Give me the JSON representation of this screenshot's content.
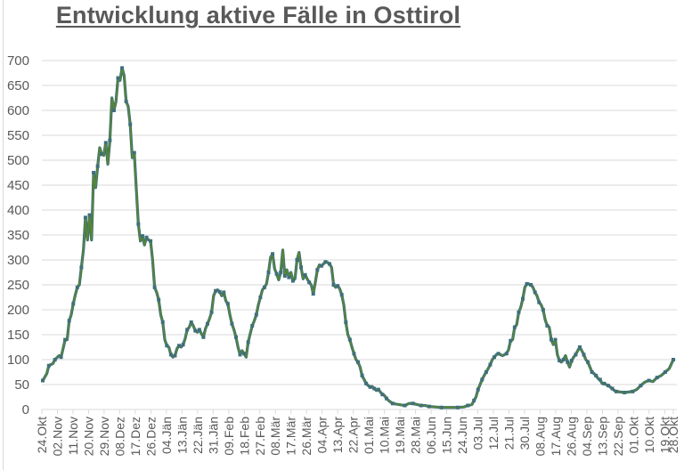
{
  "title": "Entwicklung aktive Fälle in Osttirol",
  "colors": {
    "line": "#5a8a2a",
    "marker": "#3f6f7a",
    "grid": "#d9d9d9",
    "text": "#595959"
  },
  "chart_data": {
    "type": "line",
    "title": "Entwicklung aktive Fälle in Osttirol",
    "xlabel": "",
    "ylabel": "",
    "ylim": [
      0,
      700
    ],
    "yticks": [
      0,
      50,
      100,
      150,
      200,
      250,
      300,
      350,
      400,
      450,
      500,
      550,
      600,
      650,
      700
    ],
    "grid": true,
    "legend": "none",
    "x_tick_labels": [
      "24.Okt",
      "02.Nov",
      "11.Nov",
      "20.Nov",
      "29.Nov",
      "08.Dez",
      "17.Dez",
      "26.Dez",
      "04.Jän",
      "13.Jän",
      "22.Jän",
      "31.Jän",
      "09.Feb",
      "18.Feb",
      "27.Feb",
      "08.Mär",
      "17.Mär",
      "26.Mär",
      "04.Apr",
      "13.Apr",
      "22.Apr",
      "01.Mai",
      "10.Mai",
      "19.Mai",
      "28.Mai",
      "06.Jun",
      "15.Jun",
      "24.Jun",
      "03.Jul",
      "12.Jul",
      "21.Jul",
      "30.Jul",
      "08.Aug",
      "17.Aug",
      "26.Aug",
      "04.Sep",
      "13.Sep",
      "22.Sep",
      "01.Okt",
      "10.Okt",
      "19.Okt",
      "28.Okt"
    ],
    "series": [
      {
        "name": "aktive Fälle",
        "points_day_value": [
          [
            0,
            58
          ],
          [
            2,
            72
          ],
          [
            3,
            88
          ],
          [
            5,
            92
          ],
          [
            6,
            100
          ],
          [
            8,
            108
          ],
          [
            9,
            105
          ],
          [
            10,
            122
          ],
          [
            11,
            140
          ],
          [
            12,
            140
          ],
          [
            13,
            178
          ],
          [
            14,
            190
          ],
          [
            15,
            212
          ],
          [
            16,
            230
          ],
          [
            17,
            245
          ],
          [
            18,
            250
          ],
          [
            19,
            285
          ],
          [
            20,
            320
          ],
          [
            21,
            385
          ],
          [
            22,
            340
          ],
          [
            23,
            390
          ],
          [
            24,
            340
          ],
          [
            25,
            475
          ],
          [
            26,
            445
          ],
          [
            27,
            488
          ],
          [
            28,
            525
          ],
          [
            29,
            512
          ],
          [
            30,
            510
          ],
          [
            31,
            535
          ],
          [
            32,
            492
          ],
          [
            33,
            540
          ],
          [
            34,
            625
          ],
          [
            35,
            600
          ],
          [
            36,
            618
          ],
          [
            37,
            665
          ],
          [
            38,
            660
          ],
          [
            39,
            685
          ],
          [
            40,
            670
          ],
          [
            41,
            618
          ],
          [
            42,
            608
          ],
          [
            43,
            572
          ],
          [
            44,
            505
          ],
          [
            45,
            515
          ],
          [
            46,
            442
          ],
          [
            47,
            372
          ],
          [
            48,
            338
          ],
          [
            49,
            348
          ],
          [
            50,
            330
          ],
          [
            51,
            345
          ],
          [
            52,
            340
          ],
          [
            53,
            338
          ],
          [
            54,
            300
          ],
          [
            55,
            245
          ],
          [
            56,
            235
          ],
          [
            57,
            220
          ],
          [
            58,
            190
          ],
          [
            59,
            175
          ],
          [
            60,
            140
          ],
          [
            61,
            128
          ],
          [
            62,
            125
          ],
          [
            63,
            110
          ],
          [
            64,
            105
          ],
          [
            65,
            108
          ],
          [
            66,
            122
          ],
          [
            67,
            128
          ],
          [
            68,
            125
          ],
          [
            69,
            130
          ],
          [
            70,
            142
          ],
          [
            71,
            160
          ],
          [
            72,
            165
          ],
          [
            73,
            175
          ],
          [
            74,
            168
          ],
          [
            75,
            158
          ],
          [
            76,
            155
          ],
          [
            77,
            160
          ],
          [
            78,
            152
          ],
          [
            79,
            145
          ],
          [
            80,
            162
          ],
          [
            81,
            172
          ],
          [
            82,
            182
          ],
          [
            83,
            195
          ],
          [
            84,
            228
          ],
          [
            85,
            238
          ],
          [
            86,
            240
          ],
          [
            87,
            236
          ],
          [
            88,
            228
          ],
          [
            89,
            235
          ],
          [
            90,
            218
          ],
          [
            91,
            212
          ],
          [
            92,
            190
          ],
          [
            93,
            172
          ],
          [
            94,
            160
          ],
          [
            95,
            145
          ],
          [
            96,
            125
          ],
          [
            97,
            110
          ],
          [
            98,
            118
          ],
          [
            99,
            112
          ],
          [
            100,
            105
          ],
          [
            101,
            135
          ],
          [
            102,
            152
          ],
          [
            103,
            168
          ],
          [
            104,
            178
          ],
          [
            105,
            190
          ],
          [
            106,
            210
          ],
          [
            107,
            225
          ],
          [
            108,
            240
          ],
          [
            109,
            245
          ],
          [
            110,
            252
          ],
          [
            111,
            275
          ],
          [
            112,
            305
          ],
          [
            113,
            312
          ],
          [
            114,
            282
          ],
          [
            115,
            272
          ],
          [
            116,
            260
          ],
          [
            117,
            275
          ],
          [
            118,
            320
          ],
          [
            119,
            268
          ],
          [
            120,
            280
          ],
          [
            121,
            265
          ],
          [
            122,
            275
          ],
          [
            123,
            258
          ],
          [
            124,
            262
          ],
          [
            125,
            300
          ],
          [
            126,
            315
          ],
          [
            127,
            285
          ],
          [
            128,
            262
          ],
          [
            129,
            270
          ],
          [
            130,
            262
          ],
          [
            131,
            255
          ],
          [
            132,
            250
          ],
          [
            133,
            232
          ],
          [
            134,
            255
          ],
          [
            135,
            280
          ],
          [
            136,
            290
          ],
          [
            137,
            288
          ],
          [
            138,
            292
          ],
          [
            139,
            296
          ],
          [
            140,
            295
          ],
          [
            141,
            292
          ],
          [
            142,
            285
          ],
          [
            143,
            250
          ],
          [
            144,
            245
          ],
          [
            145,
            248
          ],
          [
            146,
            242
          ],
          [
            147,
            230
          ],
          [
            148,
            210
          ],
          [
            149,
            175
          ],
          [
            150,
            150
          ],
          [
            151,
            140
          ],
          [
            152,
            125
          ],
          [
            153,
            112
          ],
          [
            154,
            100
          ],
          [
            155,
            95
          ],
          [
            156,
            85
          ],
          [
            157,
            68
          ],
          [
            158,
            60
          ],
          [
            159,
            52
          ],
          [
            160,
            48
          ],
          [
            161,
            45
          ],
          [
            162,
            46
          ],
          [
            163,
            42
          ],
          [
            164,
            38
          ],
          [
            165,
            40
          ],
          [
            166,
            35
          ],
          [
            167,
            30
          ],
          [
            168,
            28
          ],
          [
            169,
            22
          ],
          [
            170,
            18
          ],
          [
            172,
            12
          ],
          [
            175,
            10
          ],
          [
            178,
            8
          ],
          [
            180,
            12
          ],
          [
            182,
            12
          ],
          [
            184,
            10
          ],
          [
            186,
            8
          ],
          [
            188,
            8
          ],
          [
            190,
            6
          ],
          [
            193,
            5
          ],
          [
            196,
            4
          ],
          [
            200,
            4
          ],
          [
            204,
            4
          ],
          [
            207,
            5
          ],
          [
            209,
            8
          ],
          [
            211,
            10
          ],
          [
            212,
            18
          ],
          [
            213,
            25
          ],
          [
            214,
            40
          ],
          [
            215,
            50
          ],
          [
            216,
            60
          ],
          [
            217,
            68
          ],
          [
            218,
            75
          ],
          [
            219,
            82
          ],
          [
            220,
            90
          ],
          [
            221,
            100
          ],
          [
            222,
            105
          ],
          [
            223,
            110
          ],
          [
            224,
            112
          ],
          [
            226,
            108
          ],
          [
            228,
            112
          ],
          [
            229,
            120
          ],
          [
            230,
            138
          ],
          [
            231,
            140
          ],
          [
            232,
            165
          ],
          [
            233,
            170
          ],
          [
            234,
            195
          ],
          [
            235,
            205
          ],
          [
            236,
            222
          ],
          [
            237,
            245
          ],
          [
            238,
            252
          ],
          [
            239,
            252
          ],
          [
            240,
            250
          ],
          [
            241,
            245
          ],
          [
            242,
            235
          ],
          [
            243,
            228
          ],
          [
            244,
            215
          ],
          [
            245,
            210
          ],
          [
            246,
            200
          ],
          [
            247,
            180
          ],
          [
            248,
            168
          ],
          [
            249,
            165
          ],
          [
            250,
            140
          ],
          [
            251,
            130
          ],
          [
            252,
            140
          ],
          [
            253,
            110
          ],
          [
            254,
            98
          ],
          [
            255,
            95
          ],
          [
            256,
            100
          ],
          [
            257,
            108
          ],
          [
            258,
            95
          ],
          [
            259,
            85
          ],
          [
            260,
            98
          ],
          [
            261,
            105
          ],
          [
            262,
            110
          ],
          [
            263,
            118
          ],
          [
            264,
            125
          ],
          [
            265,
            118
          ],
          [
            266,
            110
          ],
          [
            267,
            100
          ],
          [
            268,
            95
          ],
          [
            269,
            85
          ],
          [
            270,
            75
          ],
          [
            271,
            72
          ],
          [
            272,
            68
          ],
          [
            273,
            62
          ],
          [
            274,
            60
          ],
          [
            275,
            52
          ],
          [
            276,
            52
          ],
          [
            277,
            50
          ],
          [
            278,
            48
          ],
          [
            279,
            45
          ],
          [
            280,
            42
          ],
          [
            281,
            38
          ],
          [
            282,
            36
          ],
          [
            284,
            35
          ],
          [
            286,
            34
          ],
          [
            288,
            35
          ],
          [
            290,
            36
          ],
          [
            292,
            40
          ],
          [
            294,
            48
          ],
          [
            296,
            55
          ],
          [
            298,
            58
          ],
          [
            300,
            56
          ],
          [
            302,
            64
          ],
          [
            304,
            68
          ],
          [
            306,
            75
          ],
          [
            308,
            82
          ],
          [
            310,
            100
          ]
        ]
      }
    ]
  }
}
